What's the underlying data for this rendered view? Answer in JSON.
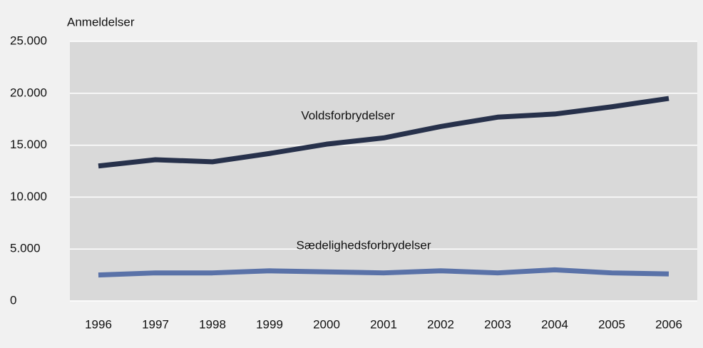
{
  "chart_data": {
    "type": "line",
    "y_axis_label": "Anmeldelser",
    "categories": [
      "1996",
      "1997",
      "1998",
      "1999",
      "2000",
      "2001",
      "2002",
      "2003",
      "2004",
      "2005",
      "2006"
    ],
    "series": [
      {
        "name": "Voldsforbrydelser",
        "color": "#27314b",
        "values": [
          13000,
          13600,
          13400,
          14200,
          15100,
          15700,
          16800,
          17700,
          18000,
          18700,
          19500
        ]
      },
      {
        "name": "Sædelighedsforbrydelser",
        "color": "#5a72a8",
        "values": [
          2500,
          2700,
          2700,
          2900,
          2800,
          2700,
          2900,
          2700,
          3000,
          2700,
          2600
        ]
      }
    ],
    "ylim": [
      0,
      25000
    ],
    "yticks": [
      0,
      {
        "value": 5000,
        "label": "5.000"
      },
      {
        "value": 10000,
        "label": "10.000"
      },
      {
        "value": 15000,
        "label": "15.000"
      },
      {
        "value": 20000,
        "label": "20.000"
      },
      {
        "value": 25000,
        "label": "25.000"
      }
    ],
    "grid": true
  }
}
